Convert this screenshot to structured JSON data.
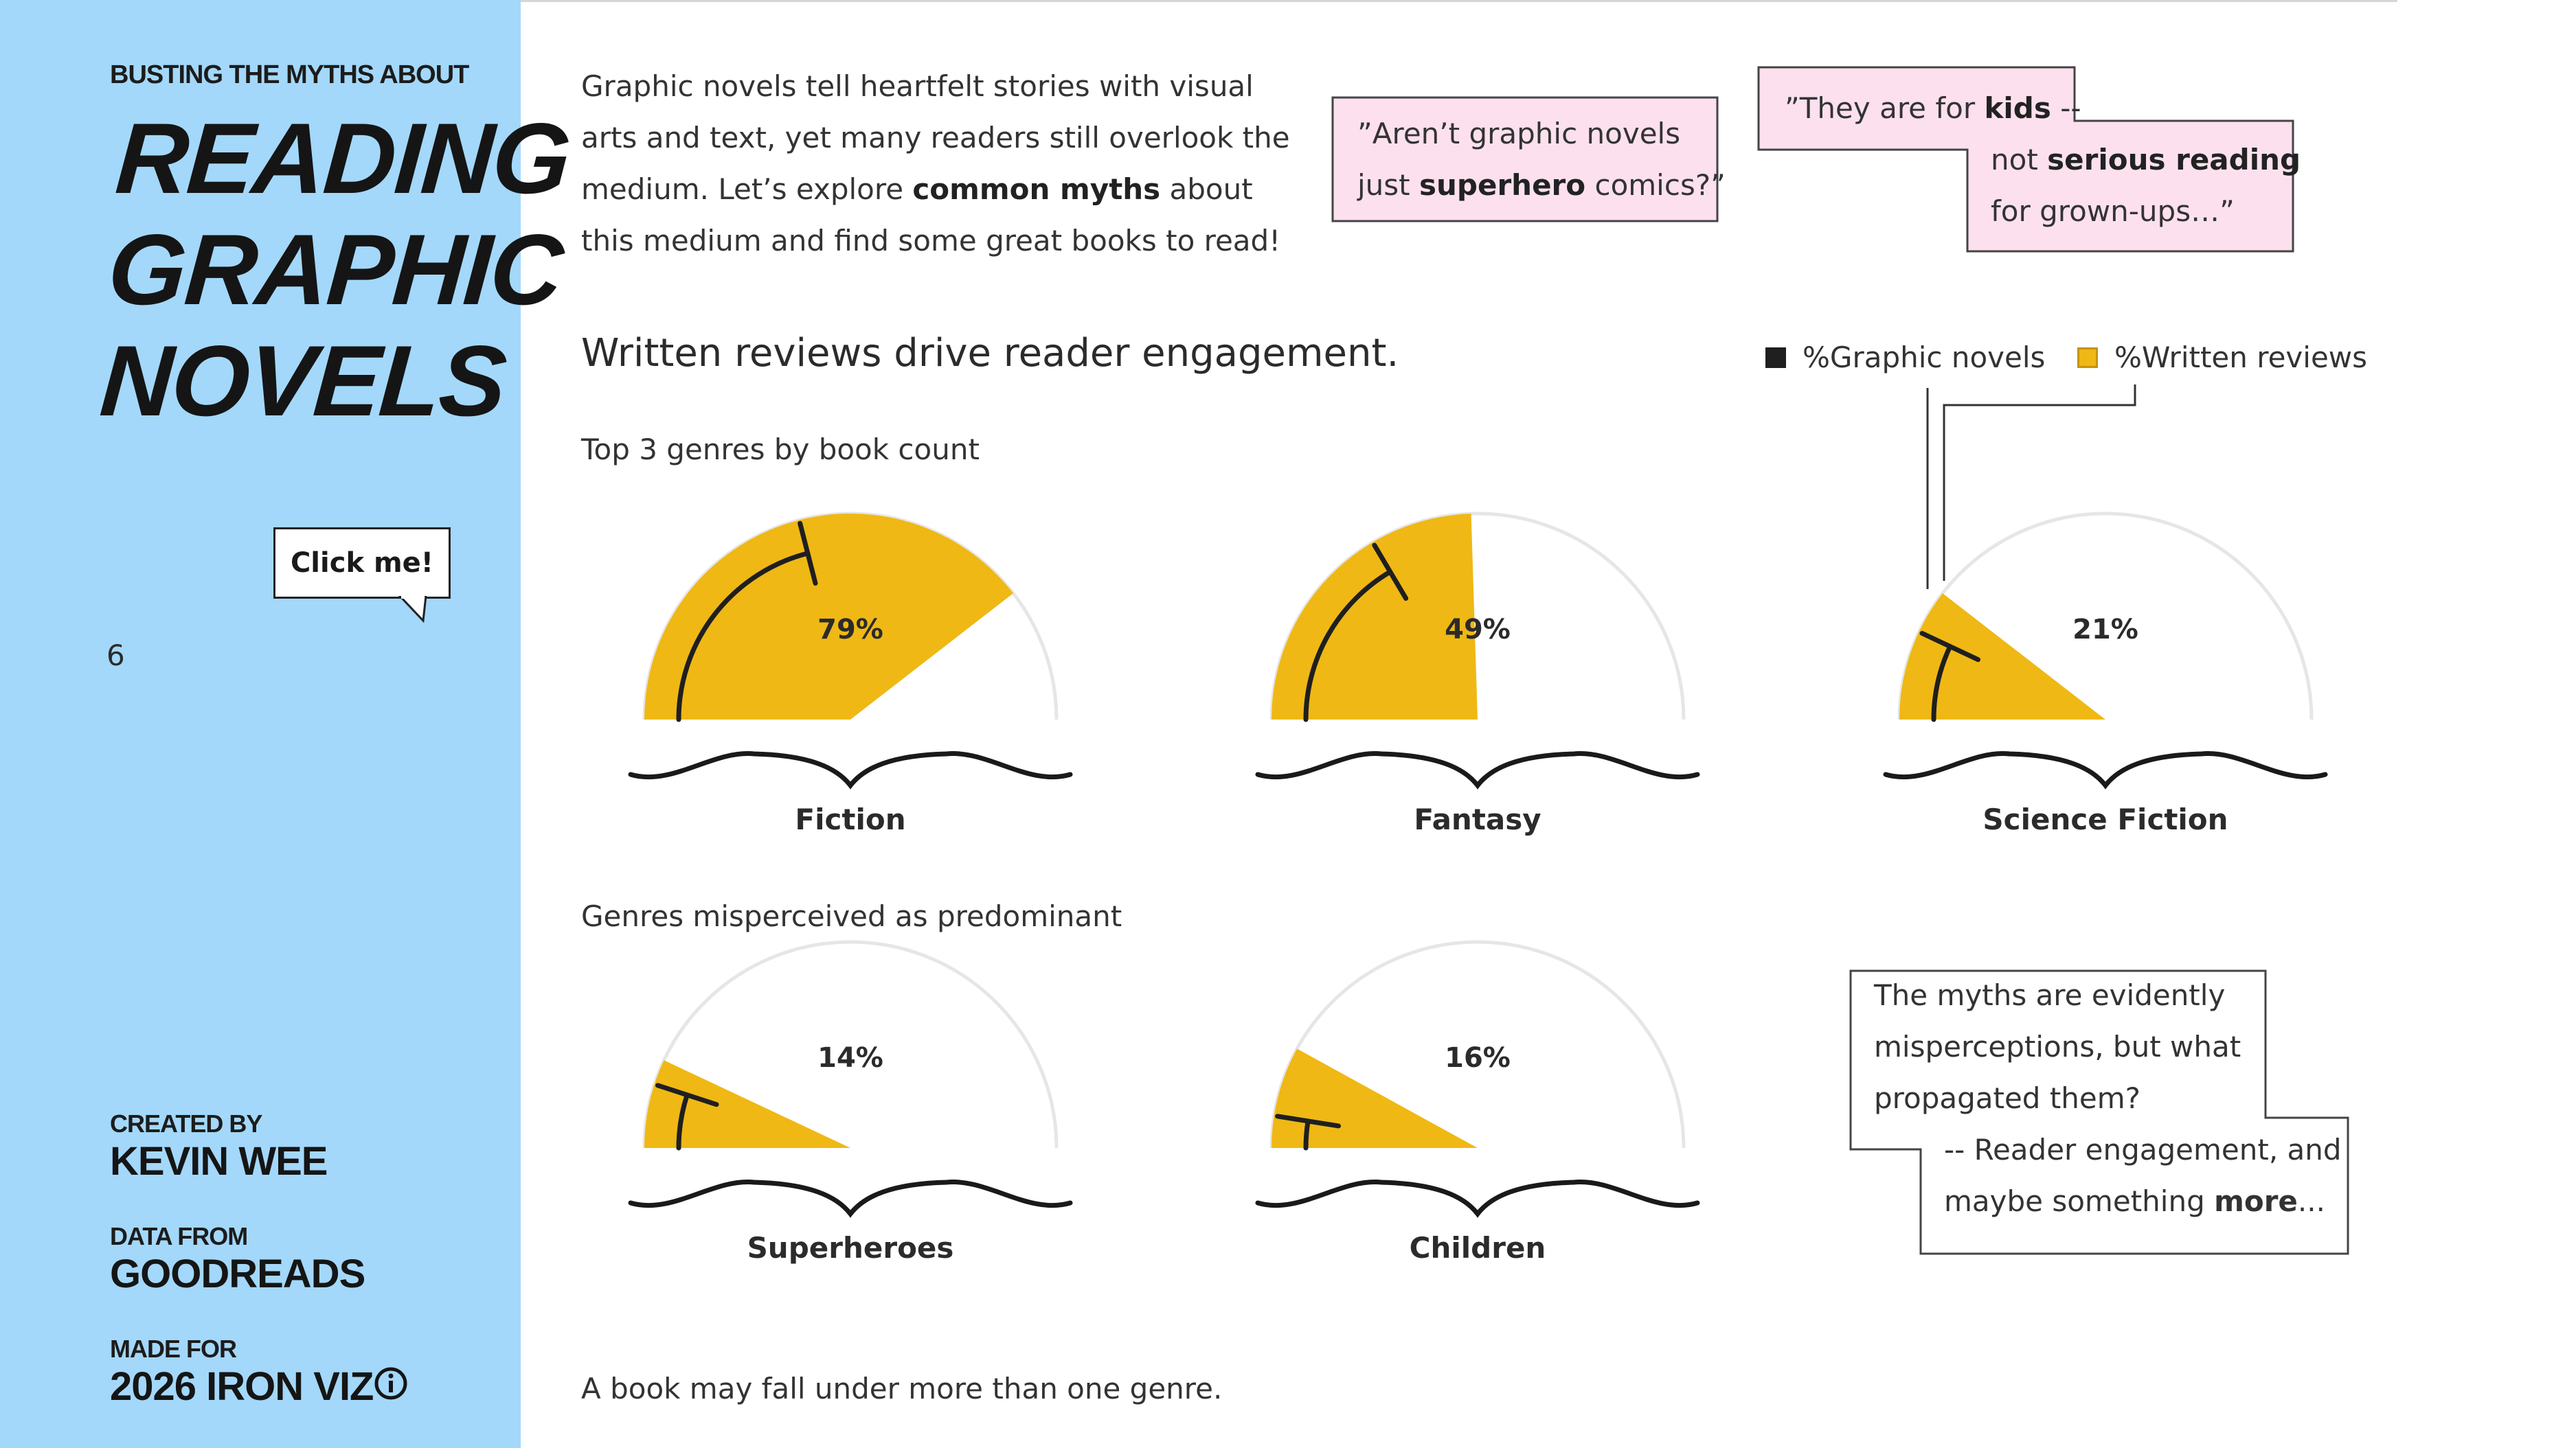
{
  "sidebar": {
    "kicker": "BUSTING THE MYTHS ABOUT",
    "title_lines": [
      "READING",
      "GRAPHIC",
      "NOVELS"
    ],
    "click_label": "Click me!",
    "counter": "6",
    "created_by_label": "CREATED BY",
    "created_by_value": "KEVIN WEE",
    "data_from_label": "DATA FROM",
    "data_from_value": "GOODREADS",
    "made_for_label": "MADE FOR",
    "made_for_value": "2026 IRON VIZ",
    "info_icon": "info-icon"
  },
  "intro": {
    "part1": "Graphic novels tell heartfelt stories with visual arts and text, yet many readers still overlook the medium. Let’s explore ",
    "bold": "common myths",
    "part2": " about this medium and find some great books to read!"
  },
  "quote1": {
    "line1": "”Aren’t graphic novels",
    "line2_pre": "just ",
    "line2_bold": "superhero",
    "line2_post": " comics?”"
  },
  "quote2": {
    "line1_pre": "”They are for ",
    "line1_bold": "kids",
    "line1_post": " --",
    "line2_pre": "not ",
    "line2_bold": "serious reading",
    "line3": "for grown-ups…”"
  },
  "heading": "Written reviews drive reader engagement.",
  "subhead_top": "Top 3 genres by book count",
  "subhead_bottom": "Genres misperceived as predominant",
  "footnote": "A book may fall under more than one genre.",
  "myth_box": {
    "line1": "The myths are evidently",
    "line2": "misperceptions, but what",
    "line3": "propagated them?",
    "line4": "-- Reader engagement, and",
    "line5_pre": "maybe something ",
    "line5_bold": "more",
    "line5_post": "..."
  },
  "colors": {
    "sidebar": "#a3d8fb",
    "gold": "#efb814",
    "ink": "#1f1f1f",
    "quote_fill": "#fde0ee",
    "arc_grey": "#e6e6e6"
  },
  "chart_data": {
    "type": "radial",
    "legend": [
      {
        "name": "%Graphic novels",
        "color": "#1f1f1f"
      },
      {
        "name": "%Written reviews",
        "color": "#efb814"
      }
    ],
    "gauges": [
      {
        "genre": "Fiction",
        "label": "79%",
        "written_reviews": 0.79,
        "graphic_novels": 0.42,
        "group": "top"
      },
      {
        "genre": "Fantasy",
        "label": "49%",
        "written_reviews": 0.49,
        "graphic_novels": 0.33,
        "group": "top"
      },
      {
        "genre": "Science Fiction",
        "label": "21%",
        "written_reviews": 0.21,
        "graphic_novels": 0.14,
        "group": "top"
      },
      {
        "genre": "Superheroes",
        "label": "14%",
        "written_reviews": 0.14,
        "graphic_novels": 0.1,
        "group": "misperceived"
      },
      {
        "genre": "Children",
        "label": "16%",
        "written_reviews": 0.16,
        "graphic_novels": 0.05,
        "group": "misperceived"
      }
    ]
  }
}
